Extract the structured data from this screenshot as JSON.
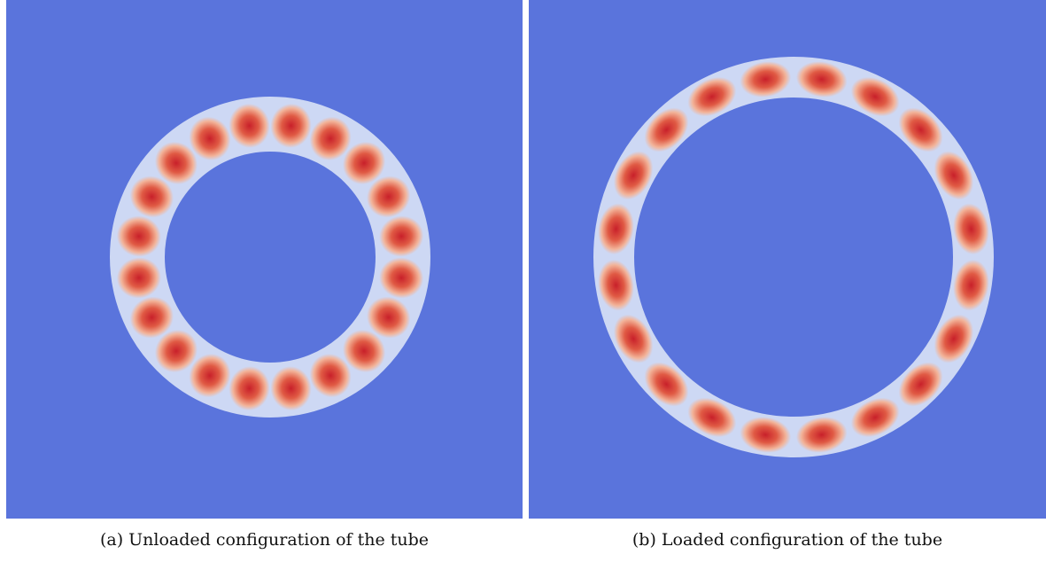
{
  "figure": {
    "panels": [
      {
        "caption": "(a) Unloaded configuration of the tube"
      },
      {
        "caption": "(b) Loaded configuration of the tube"
      }
    ]
  }
}
